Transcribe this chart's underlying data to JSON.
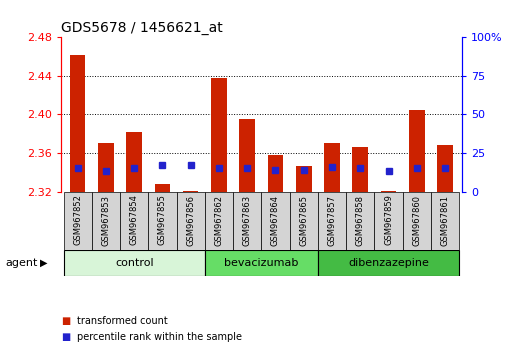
{
  "title": "GDS5678 / 1456621_at",
  "samples": [
    "GSM967852",
    "GSM967853",
    "GSM967854",
    "GSM967855",
    "GSM967856",
    "GSM967862",
    "GSM967863",
    "GSM967864",
    "GSM967865",
    "GSM967857",
    "GSM967858",
    "GSM967859",
    "GSM967860",
    "GSM967861"
  ],
  "transformed_count": [
    2.462,
    2.37,
    2.382,
    2.328,
    2.321,
    2.438,
    2.395,
    2.358,
    2.347,
    2.37,
    2.366,
    2.321,
    2.405,
    2.368
  ],
  "percentile_rank": [
    15,
    13,
    15,
    17,
    17,
    15,
    15,
    14,
    14,
    16,
    15,
    13,
    15,
    15
  ],
  "y_min": 2.32,
  "y_max": 2.48,
  "y_ticks": [
    2.32,
    2.36,
    2.4,
    2.44,
    2.48
  ],
  "right_y_ticks": [
    0,
    25,
    50,
    75,
    100
  ],
  "right_y_labels": [
    "0",
    "25",
    "50",
    "75",
    "100%"
  ],
  "bar_color": "#cc2200",
  "percentile_color": "#2222cc",
  "groups": [
    {
      "name": "control",
      "start": 0,
      "end": 5,
      "color": "#d8f5d8"
    },
    {
      "name": "bevacizumab",
      "start": 5,
      "end": 9,
      "color": "#66dd66"
    },
    {
      "name": "dibenzazepine",
      "start": 9,
      "end": 14,
      "color": "#44bb44"
    }
  ],
  "agent_label": "agent",
  "legend_items": [
    {
      "label": "transformed count",
      "color": "#cc2200"
    },
    {
      "label": "percentile rank within the sample",
      "color": "#2222cc"
    }
  ],
  "bg_color": "#ffffff",
  "tick_col_color": "#d4d4d4"
}
